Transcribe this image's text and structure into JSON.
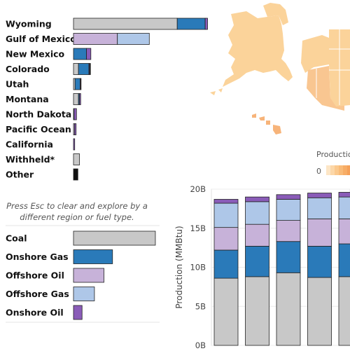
{
  "colors": {
    "coal": "#c8c8c8",
    "onshore_gas": "#2a7ab9",
    "offshore_oil": "#c7b2d9",
    "offshore_gas": "#aec7e8",
    "onshore_oil": "#8a5cb8",
    "other": "#111111",
    "map_base": "#fbd39a",
    "map_dark": "#f6b072"
  },
  "instructions": "Press Esc to clear and explore by a|different region or fuel type.",
  "map_legend": {
    "title": "Production",
    "min_label": "0"
  },
  "chart_data": [
    {
      "type": "bar",
      "orientation": "horizontal",
      "stacked": true,
      "categories": [
        "Wyoming",
        "Gulf of Mexico",
        "New Mexico",
        "Colorado",
        "Utah",
        "Montana",
        "North Dakota",
        "Pacific Ocean",
        "California",
        "Withheld*",
        "Other"
      ],
      "series": [
        {
          "key": "coal",
          "values": [
            5.2,
            0.0,
            0.0,
            0.25,
            0.08,
            0.25,
            0.0,
            0.0,
            0.0,
            0.3,
            0.0
          ]
        },
        {
          "key": "onshore_gas",
          "values": [
            1.4,
            0.0,
            0.65,
            0.52,
            0.25,
            0.05,
            0.03,
            0.0,
            0.0,
            0.0,
            0.0
          ]
        },
        {
          "key": "offshore_oil",
          "values": [
            0.0,
            2.2,
            0.0,
            0.0,
            0.0,
            0.0,
            0.0,
            0.05,
            0.0,
            0.0,
            0.0
          ]
        },
        {
          "key": "offshore_gas",
          "values": [
            0.0,
            1.6,
            0.0,
            0.0,
            0.0,
            0.0,
            0.0,
            0.0,
            0.0,
            0.0,
            0.0
          ]
        },
        {
          "key": "onshore_oil",
          "values": [
            0.12,
            0.0,
            0.22,
            0.04,
            0.03,
            0.06,
            0.12,
            0.08,
            0.06,
            0.0,
            0.0
          ]
        },
        {
          "key": "other",
          "values": [
            0.0,
            0.0,
            0.0,
            0.04,
            0.02,
            0.0,
            0.0,
            0.0,
            0.0,
            0.0,
            0.22
          ]
        }
      ]
    },
    {
      "type": "bar",
      "orientation": "horizontal",
      "categories": [
        "Coal",
        "Onshore Gas",
        "Offshore Oil",
        "Offshore Gas",
        "Onshore Oil"
      ],
      "keys": [
        "coal",
        "onshore_gas",
        "offshore_oil",
        "offshore_gas",
        "onshore_oil"
      ],
      "values": [
        8.6,
        4.1,
        3.2,
        2.2,
        0.9
      ]
    },
    {
      "type": "bar",
      "stacked": true,
      "ylabel": "Production (MMBtu)",
      "ylim": [
        0,
        20
      ],
      "yticks": [
        {
          "value": 0,
          "label": "0B"
        },
        {
          "value": 5,
          "label": "5B"
        },
        {
          "value": 10,
          "label": "10B"
        },
        {
          "value": 15,
          "label": "15B"
        },
        {
          "value": 20,
          "label": "20B"
        }
      ],
      "series": [
        {
          "key": "coal",
          "values": [
            8.6,
            8.8,
            9.3,
            8.7,
            8.8
          ]
        },
        {
          "key": "onshore_gas",
          "values": [
            3.6,
            3.9,
            4.0,
            4.0,
            4.2
          ]
        },
        {
          "key": "offshore_oil",
          "values": [
            2.9,
            2.8,
            2.7,
            3.5,
            3.2
          ]
        },
        {
          "key": "offshore_gas",
          "values": [
            3.1,
            2.9,
            2.7,
            2.7,
            2.8
          ]
        },
        {
          "key": "onshore_oil",
          "values": [
            0.5,
            0.6,
            0.6,
            0.6,
            0.6
          ]
        }
      ]
    }
  ]
}
